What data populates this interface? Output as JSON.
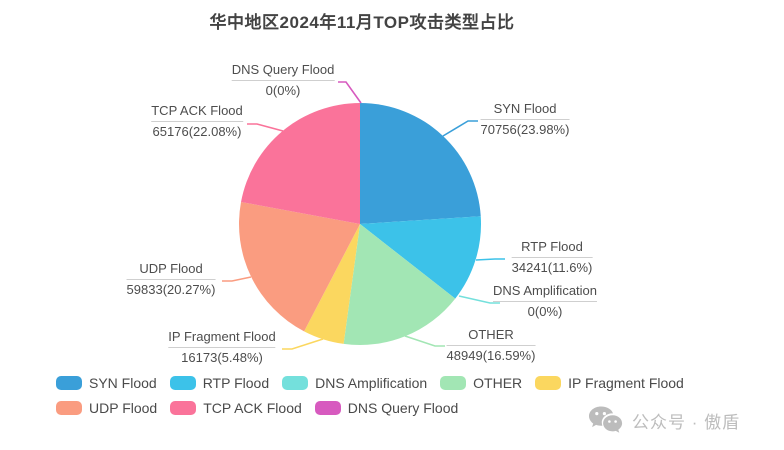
{
  "title": "华中地区2024年11月TOP攻击类型占比",
  "watermark_text": "公众号 · 傲盾",
  "chart_data": {
    "type": "pie",
    "title": "华中地区2024年11月TOP攻击类型占比",
    "legend_position": "bottom",
    "label_format": "name / value(percent)",
    "slices": [
      {
        "key": "syn",
        "name": "SYN Flood",
        "value": 70756,
        "percent": "23.98%",
        "label": "70756(23.98%)",
        "color": "#3A9FD9"
      },
      {
        "key": "rtp",
        "name": "RTP Flood",
        "value": 34241,
        "percent": "11.6%",
        "label": "34241(11.6%)",
        "color": "#3CC2E9"
      },
      {
        "key": "dns_amp",
        "name": "DNS Amplification",
        "value": 0,
        "percent": "0%",
        "label": "0(0%)",
        "color": "#74E0DC"
      },
      {
        "key": "other",
        "name": "OTHER",
        "value": 48949,
        "percent": "16.59%",
        "label": "48949(16.59%)",
        "color": "#A2E6B4"
      },
      {
        "key": "ip_frag",
        "name": "IP Fragment Flood",
        "value": 16173,
        "percent": "5.48%",
        "label": "16173(5.48%)",
        "color": "#FBD75F"
      },
      {
        "key": "udp",
        "name": "UDP Flood",
        "value": 59833,
        "percent": "20.27%",
        "label": "59833(20.27%)",
        "color": "#FA9C80"
      },
      {
        "key": "tcp_ack",
        "name": "TCP ACK Flood",
        "value": 65176,
        "percent": "22.08%",
        "label": "65176(22.08%)",
        "color": "#FA739A"
      },
      {
        "key": "dns_query",
        "name": "DNS Query Flood",
        "value": 0,
        "percent": "0%",
        "label": "0(0%)",
        "color": "#D75ABF"
      }
    ],
    "legend_rows": [
      [
        "SYN Flood",
        "RTP Flood",
        "DNS Amplification",
        "OTHER",
        "IP Fragment Flood"
      ],
      [
        "UDP Flood",
        "TCP ACK Flood",
        "DNS Query Flood"
      ]
    ]
  }
}
